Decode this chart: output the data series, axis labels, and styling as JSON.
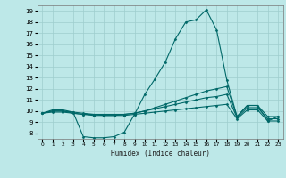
{
  "title": "",
  "xlabel": "Humidex (Indice chaleur)",
  "background_color": "#bde8e8",
  "grid_color": "#9ecece",
  "line_color": "#006868",
  "xlim": [
    -0.5,
    23.5
  ],
  "ylim": [
    7.5,
    19.5
  ],
  "yticks": [
    8,
    9,
    10,
    11,
    12,
    13,
    14,
    15,
    16,
    17,
    18,
    19
  ],
  "xticks": [
    0,
    1,
    2,
    3,
    4,
    5,
    6,
    7,
    8,
    9,
    10,
    11,
    12,
    13,
    14,
    15,
    16,
    17,
    18,
    19,
    20,
    21,
    22,
    23
  ],
  "lines": [
    {
      "x": [
        0,
        1,
        2,
        3,
        4,
        5,
        6,
        7,
        8,
        9,
        10,
        11,
        12,
        13,
        14,
        15,
        16,
        17,
        18,
        19,
        20,
        21,
        22,
        23
      ],
      "y": [
        9.8,
        10.1,
        10.1,
        9.9,
        7.7,
        7.6,
        7.6,
        7.7,
        8.1,
        9.7,
        11.5,
        12.9,
        14.4,
        16.5,
        18.0,
        18.2,
        19.1,
        17.3,
        12.8,
        9.5,
        10.5,
        10.5,
        9.1,
        9.5
      ]
    },
    {
      "x": [
        0,
        1,
        2,
        3,
        4,
        5,
        6,
        7,
        8,
        9,
        10,
        11,
        12,
        13,
        14,
        15,
        16,
        17,
        18,
        19,
        20,
        21,
        22,
        23
      ],
      "y": [
        9.8,
        10.0,
        10.0,
        9.9,
        9.8,
        9.7,
        9.7,
        9.7,
        9.7,
        9.8,
        10.0,
        10.3,
        10.6,
        10.9,
        11.2,
        11.5,
        11.8,
        12.0,
        12.2,
        9.5,
        10.5,
        10.5,
        9.5,
        9.5
      ]
    },
    {
      "x": [
        0,
        1,
        2,
        3,
        4,
        5,
        6,
        7,
        8,
        9,
        10,
        11,
        12,
        13,
        14,
        15,
        16,
        17,
        18,
        19,
        20,
        21,
        22,
        23
      ],
      "y": [
        9.8,
        10.0,
        10.0,
        9.8,
        9.7,
        9.7,
        9.6,
        9.6,
        9.7,
        9.8,
        10.0,
        10.2,
        10.4,
        10.6,
        10.8,
        11.0,
        11.2,
        11.3,
        11.5,
        9.4,
        10.3,
        10.3,
        9.3,
        9.3
      ]
    },
    {
      "x": [
        0,
        1,
        2,
        3,
        4,
        5,
        6,
        7,
        8,
        9,
        10,
        11,
        12,
        13,
        14,
        15,
        16,
        17,
        18,
        19,
        20,
        21,
        22,
        23
      ],
      "y": [
        9.8,
        9.9,
        9.9,
        9.8,
        9.7,
        9.6,
        9.6,
        9.6,
        9.6,
        9.7,
        9.8,
        9.9,
        10.0,
        10.1,
        10.2,
        10.3,
        10.4,
        10.5,
        10.6,
        9.3,
        10.1,
        10.1,
        9.1,
        9.1
      ]
    }
  ]
}
